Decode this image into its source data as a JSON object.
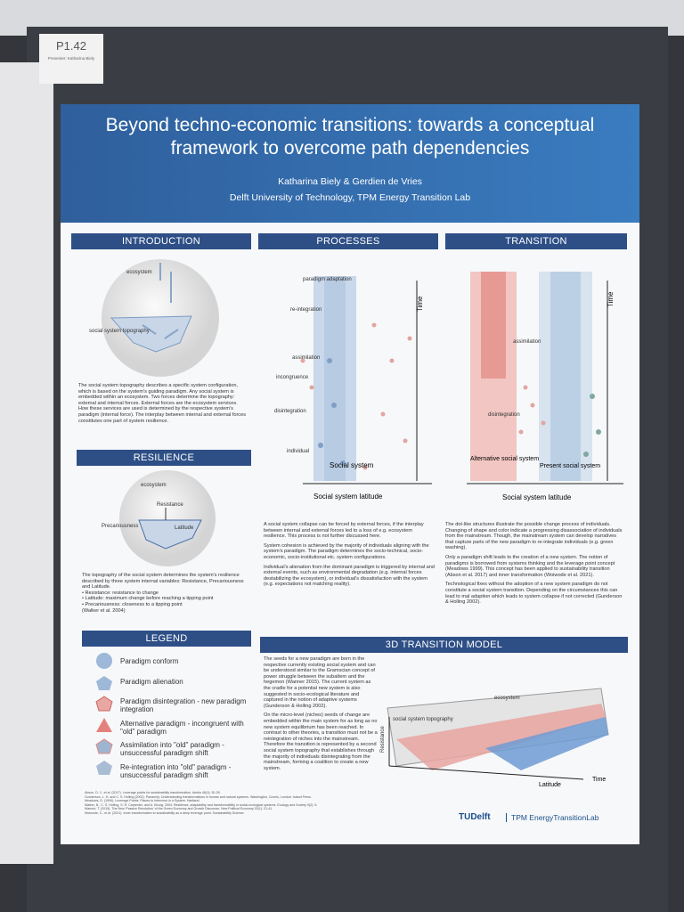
{
  "board_label": {
    "code": "P1.42",
    "presenter": "Presenter: Katharina Biely"
  },
  "header": {
    "title": "Beyond techno-economic transitions: towards a conceptual framework to overcome path dependencies",
    "authors": "Katharina Biely & Gerdien de Vries",
    "affiliation": "Delft University of Technology, TPM Energy Transition Lab"
  },
  "introduction": {
    "heading": "INTRODUCTION",
    "labels": [
      "ecosystem",
      "social system topography"
    ],
    "text": "The social system topography describes a specific system configuration, which is based on the system's guiding paradigm. Any social system is embedded within an ecosystem. Two forces determine the topography: external and internal forces. External forces are the ecosystem services. How these services are used is determined by the respective system's paradigm (internal force). The interplay between internal and external forces constitutes one part of system resilience."
  },
  "resilience": {
    "heading": "RESILIENCE",
    "labels": [
      "ecosystem",
      "Resistance",
      "Latitude",
      "Precariousness"
    ],
    "lines": [
      "The topography of the social system determines the system's resilience described by three system internal variables: Resistance, Precariousness and Latitude.",
      "• Resistance: resistance to change",
      "• Latitude: maximum change before reaching a tipping point",
      "• Precariousness: closeness to a tipping point",
      "(Walker et al. 2004)"
    ]
  },
  "processes": {
    "heading": "PROCESSES",
    "labels": [
      "paradigm adaptation",
      "re-integration",
      "assimilation",
      "incongruence",
      "disintegration",
      "individual",
      "Social system",
      "Time",
      "Social system latitude"
    ],
    "paragraphs": [
      "A social system collapse can be forced by external forces, if the interplay between internal and external forces led to a loss of e.g. ecosystem resilience. This process is not further discussed here.",
      "System cohesion is achieved by the majority of individuals aligning with the system's paradigm. The paradigm determines the socio-technical, socio-economic, socio-institutional etc. system configurations.",
      "Individual's alienation from the dominant paradigm is triggered by internal and external events, such as environmental degradation (e.g. internal forces destabilizing the ecosystem), or individual's dissatisfaction with the system (e.g. expectations not matching reality)."
    ]
  },
  "transition": {
    "heading": "TRANSITION",
    "labels": [
      "assimilation",
      "disintegration",
      "Alternative social system",
      "Present social system",
      "Time",
      "Social system latitude"
    ],
    "paragraphs": [
      "The dot-like structures illustrate the possible change process of individuals. Changing of shape and color indicate a progressing disassociation of individuals from the mainstream. Though, the mainstream system can develop narratives that capture parts of the new paradigm to re-integrate individuals (e.g. green washing).",
      "Only a paradigm shift leads to the creation of a new system. The notion of paradigms is borrowed from systems thinking and the leverage point concept (Meadows 1999). This concept has been applied to sustainability transition (Abson et al. 2017) and inner transformation (Woiwode et al. 2021).",
      "Technological fixes without the adoption of a new system paradigm do not constitute a social system transition. Depending on the circumstances this can lead to mal adaption which leads to system collapse if not corrected (Gunderson & Holling 2002)."
    ]
  },
  "legend": {
    "heading": "LEGEND",
    "items": [
      "Paradigm conform",
      "Paradigm alienation",
      "Paradigm disintegration - new paradigm integration",
      "Alternative paradigm - incongruent with \"old\" paradigm",
      "Assimilation into \"old\" paradigm - unsuccessful paradigm shift",
      "Re-integration into \"old\" paradigm - unsuccessful paradigm shift"
    ]
  },
  "model": {
    "heading": "3D TRANSITION MODEL",
    "paragraphs": [
      "The seeds for a new paradigm are born in the respective currently existing social system and can be understood similar to the Gramscian concept of power struggle between the subaltern and the hegemon (Wanner 2015). The current system as the cradle for a potential new system is also suggested in socio-ecological literature and captured in the notion of adaptive systems (Gunderson & Holling 2002).",
      "On the micro-level (niches) seeds of change are embedded within the main system for as long as no new system equilibrium has been reached. In contrast to other theories, a transition must not be a reintegration of niches into the mainstream. Therefore the transition is represented by a second social system topography that establishes through the majority of individuals disintegrating from the mainstream, forming a coalition to create a new system."
    ],
    "labels": [
      "ecosystem",
      "social system topography",
      "Resistance",
      "Latitude",
      "Time"
    ]
  },
  "references": [
    "Abson, D. J., et al. (2017). Leverage points for sustainability transformation. Ambio 46(1): 30-39.",
    "Gunderson, L. H. and C. S. Holling (2002). Panarchy: Understanding transformations in human and natural systems. Washington, Covelo, London: Island Press.",
    "Meadows, D. (1999). Leverage Points: Places to Intervene in a System. Hartland.",
    "Walker, B., C. S. Holling, S. R. Carpenter, and A. Kinzig. 2004. Resilience, adaptability and transformability in social-ecological systems. Ecology and Society 9(2): 5.",
    "Wanner, T. (2015). The New 'Passive Revolution' of the Green Economy and Growth Discourse. New Political Economy 20(1): 21-41.",
    "Woiwode, C., et al. (2021). Inner transformation to sustainability as a deep leverage point. Sustainability Science."
  ],
  "footer": {
    "logo": "TUDelft",
    "lab": "TPM EnergyTransitionLab"
  }
}
